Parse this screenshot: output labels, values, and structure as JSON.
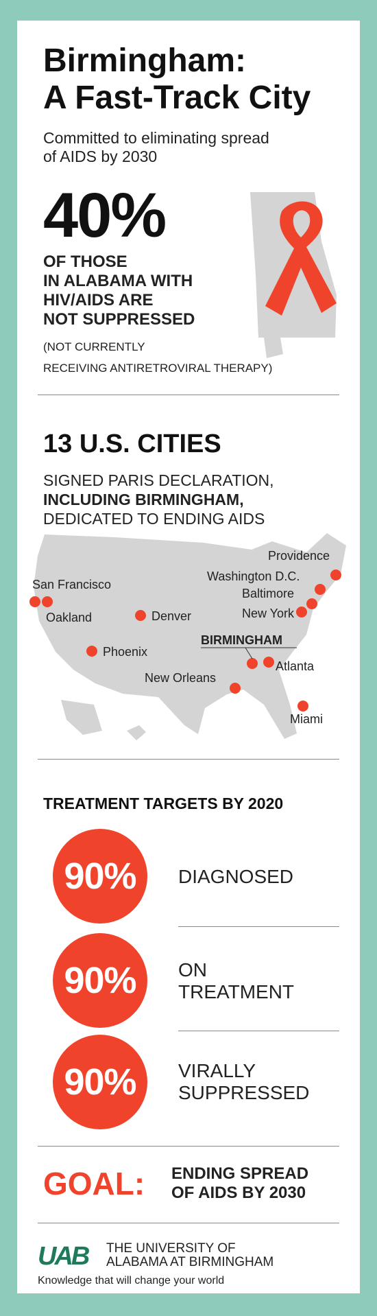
{
  "header": {
    "title_line1": "Birmingham:",
    "title_line2": "A Fast-Track City",
    "subtitle_line1": "Committed to eliminating spread",
    "subtitle_line2": "of AIDS by 2030"
  },
  "stat": {
    "value": "40%",
    "text_line1": "OF THOSE",
    "text_line2": "IN ALABAMA WITH",
    "text_line3": "HIV/AIDS ARE",
    "text_line4": "NOT SUPPRESSED",
    "note_line1": "(NOT CURRENTLY",
    "note_line2": "RECEIVING ANTIRETROVIRAL THERAPY)"
  },
  "cities": {
    "heading": "13 U.S. CITIES",
    "sub_line1": "SIGNED PARIS DECLARATION,",
    "sub_line2": "INCLUDING BIRMINGHAM,",
    "sub_line3": "DEDICATED TO ENDING AIDS",
    "labels": {
      "providence": "Providence",
      "washington": "Washington D.C.",
      "baltimore": "Baltimore",
      "new_york": "New York",
      "san_francisco": "San Francisco",
      "oakland": "Oakland",
      "denver": "Denver",
      "birmingham": "BIRMINGHAM",
      "phoenix": "Phoenix",
      "atlanta": "Atlanta",
      "new_orleans": "New Orleans",
      "miami": "Miami"
    }
  },
  "targets": {
    "heading": "TREATMENT TARGETS BY 2020",
    "items": [
      {
        "value": "90%",
        "label_line1": "DIAGNOSED",
        "label_line2": ""
      },
      {
        "value": "90%",
        "label_line1": "ON",
        "label_line2": "TREATMENT"
      },
      {
        "value": "90%",
        "label_line1": "VIRALLY",
        "label_line2": "SUPPRESSED"
      }
    ]
  },
  "goal": {
    "label": "GOAL:",
    "text_line1": "ENDING SPREAD",
    "text_line2": "OF AIDS BY 2030"
  },
  "footer": {
    "logo": "UAB",
    "name_line1": "THE UNIVERSITY OF",
    "name_line2": "ALABAMA AT BIRMINGHAM",
    "tagline": "Knowledge that will change your world"
  },
  "colors": {
    "background": "#8fcbbb",
    "accent_red": "#f0432c",
    "map_gray": "#d4d4d4",
    "uab_green": "#1e7a5a"
  },
  "icons": [
    "red-ribbon-icon",
    "alabama-state-icon",
    "us-map",
    "uab-logo"
  ]
}
